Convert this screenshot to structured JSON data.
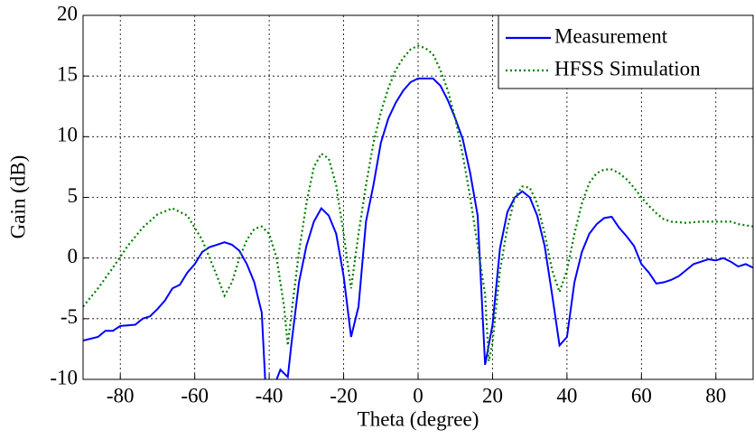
{
  "chart_data": {
    "type": "line",
    "xlabel": "Theta (degree)",
    "ylabel": "Gain  (dB)",
    "xlim": [
      -90,
      90
    ],
    "xticks": [
      -80,
      -60,
      -40,
      -20,
      0,
      20,
      40,
      60,
      80
    ],
    "ylim": [
      -10,
      20
    ],
    "yticks": [
      -10,
      -5,
      0,
      5,
      10,
      15,
      20
    ],
    "grid": true,
    "legend": "upper right",
    "series": [
      {
        "name": "Measurement",
        "color": "#0000ff",
        "style": "solid",
        "x": [
          -90,
          -86,
          -84,
          -82,
          -80,
          -76,
          -74,
          -72,
          -70,
          -68,
          -66,
          -64,
          -62,
          -60,
          -58,
          -56,
          -54,
          -52,
          -50,
          -48,
          -46,
          -44,
          -42,
          -41,
          -39,
          -37,
          -35,
          -34,
          -32,
          -30,
          -28,
          -26,
          -24,
          -22,
          -20,
          -18,
          -16,
          -14,
          -12,
          -10,
          -8,
          -6,
          -4,
          -2,
          0,
          2,
          4,
          6,
          8,
          10,
          12,
          14,
          16,
          18,
          20,
          22,
          24,
          26,
          28,
          30,
          32,
          34,
          36,
          38,
          40,
          42,
          44,
          46,
          48,
          50,
          52,
          54,
          56,
          58,
          60,
          62,
          64,
          66,
          68,
          70,
          72,
          74,
          76,
          78,
          80,
          82,
          84,
          86,
          88,
          90
        ],
        "values": [
          -6.8,
          -6.5,
          -6.0,
          -6.0,
          -5.6,
          -5.5,
          -5.0,
          -4.8,
          -4.2,
          -3.5,
          -2.5,
          -2.2,
          -1.2,
          -0.5,
          0.5,
          0.9,
          1.1,
          1.3,
          1.1,
          0.6,
          -0.5,
          -2.0,
          -4.5,
          -10.5,
          -10.8,
          -9.2,
          -9.8,
          -7.0,
          -2.0,
          1.0,
          3.0,
          4.1,
          3.5,
          2.0,
          -1.5,
          -6.5,
          -4.0,
          3.0,
          6.0,
          9.5,
          11.5,
          12.8,
          13.8,
          14.5,
          14.8,
          14.8,
          14.8,
          14.2,
          13.0,
          11.5,
          9.8,
          7.0,
          3.5,
          -8.8,
          -5.5,
          0.8,
          3.8,
          5.0,
          5.5,
          5.0,
          3.5,
          1.0,
          -3.0,
          -7.2,
          -6.5,
          -2.0,
          0.5,
          2.0,
          2.8,
          3.3,
          3.4,
          2.5,
          1.8,
          1.0,
          -0.5,
          -1.2,
          -2.1,
          -2.0,
          -1.8,
          -1.5,
          -1.0,
          -0.5,
          -0.3,
          -0.1,
          -0.2,
          0.0,
          -0.3,
          -0.7,
          -0.5,
          -0.8
        ]
      },
      {
        "name": "HFSS Simulation",
        "color": "#008000",
        "style": "dotted",
        "x": [
          -90,
          -86,
          -82,
          -78,
          -74,
          -70,
          -66,
          -62,
          -58,
          -56,
          -54,
          -52,
          -50,
          -48,
          -46,
          -44,
          -42,
          -40,
          -38,
          -36,
          -35,
          -34,
          -32,
          -30,
          -28,
          -26,
          -24,
          -22,
          -20,
          -18,
          -16,
          -14,
          -12,
          -10,
          -8,
          -6,
          -4,
          -2,
          0,
          2,
          4,
          6,
          8,
          10,
          12,
          14,
          16,
          18,
          19,
          20,
          22,
          24,
          26,
          28,
          30,
          32,
          34,
          36,
          38,
          40,
          42,
          44,
          46,
          48,
          50,
          52,
          54,
          56,
          58,
          60,
          62,
          64,
          66,
          68,
          72,
          76,
          80,
          84,
          86,
          90
        ],
        "values": [
          -4.0,
          -2.5,
          -0.8,
          1.0,
          2.5,
          3.6,
          4.1,
          3.5,
          1.5,
          0.0,
          -1.5,
          -3.1,
          -2.0,
          0.0,
          1.5,
          2.4,
          2.6,
          2.0,
          0.0,
          -4.0,
          -7.2,
          -4.5,
          0.5,
          4.5,
          7.5,
          8.6,
          8.2,
          6.0,
          2.0,
          -2.5,
          2.0,
          6.0,
          9.5,
          12.0,
          14.0,
          15.5,
          16.5,
          17.2,
          17.5,
          17.3,
          16.8,
          15.5,
          13.8,
          11.5,
          8.5,
          5.0,
          1.0,
          -3.0,
          -8.5,
          -7.0,
          -1.0,
          2.5,
          5.0,
          5.9,
          5.8,
          4.5,
          2.0,
          -1.0,
          -2.8,
          -1.0,
          2.0,
          4.5,
          6.2,
          7.0,
          7.3,
          7.3,
          7.0,
          6.5,
          5.8,
          5.0,
          4.3,
          3.7,
          3.2,
          3.0,
          2.9,
          3.0,
          3.0,
          3.0,
          2.8,
          2.6
        ]
      }
    ]
  }
}
